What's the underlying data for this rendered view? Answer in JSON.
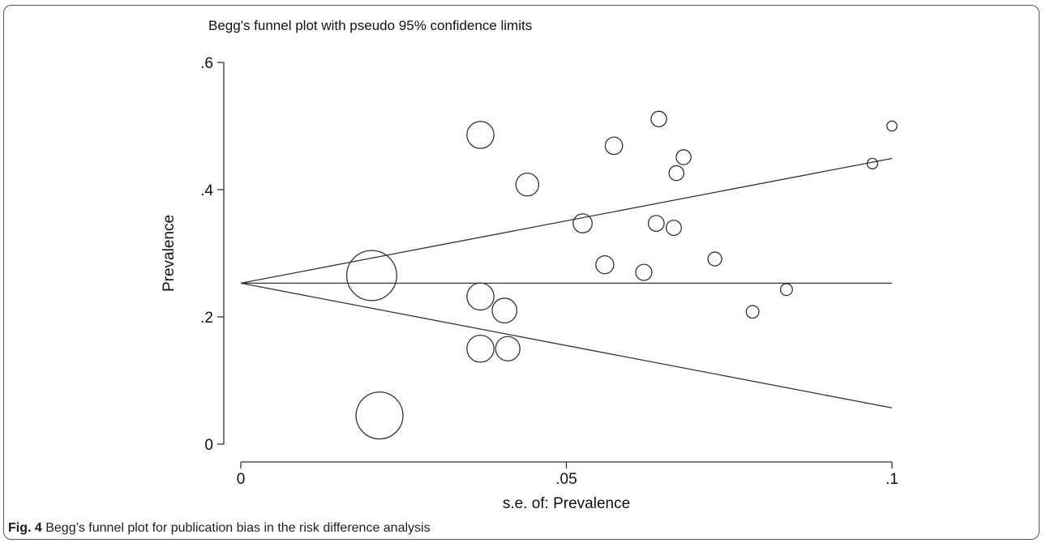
{
  "chart_data": {
    "type": "scatter",
    "title": "Begg's funnel plot with pseudo 95% confidence limits",
    "xlabel": "s.e. of: Prevalence",
    "ylabel": "Prevalence",
    "xlim": [
      0,
      0.1
    ],
    "ylim": [
      0,
      0.6
    ],
    "x_ticks": [
      {
        "value": 0,
        "label": "0"
      },
      {
        "value": 0.05,
        "label": ".05"
      },
      {
        "value": 0.1,
        "label": ".1"
      }
    ],
    "y_ticks": [
      {
        "value": 0,
        "label": "0"
      },
      {
        "value": 0.2,
        "label": ".2"
      },
      {
        "value": 0.4,
        "label": ".4"
      },
      {
        "value": 0.6,
        "label": ".6"
      }
    ],
    "pooled_estimate": 0.253,
    "confidence_limits": "pseudo 95%",
    "points": [
      {
        "x": 0.0201,
        "y": 0.265,
        "weight": 2.5
      },
      {
        "x": 0.0213,
        "y": 0.045,
        "weight": 2.2
      },
      {
        "x": 0.0368,
        "y": 0.486,
        "weight": 0.73
      },
      {
        "x": 0.0368,
        "y": 0.232,
        "weight": 0.73
      },
      {
        "x": 0.0368,
        "y": 0.15,
        "weight": 0.73
      },
      {
        "x": 0.0405,
        "y": 0.21,
        "weight": 0.61
      },
      {
        "x": 0.041,
        "y": 0.15,
        "weight": 0.59
      },
      {
        "x": 0.044,
        "y": 0.408,
        "weight": 0.52
      },
      {
        "x": 0.0525,
        "y": 0.347,
        "weight": 0.36
      },
      {
        "x": 0.0559,
        "y": 0.282,
        "weight": 0.32
      },
      {
        "x": 0.0573,
        "y": 0.469,
        "weight": 0.3
      },
      {
        "x": 0.0619,
        "y": 0.27,
        "weight": 0.26
      },
      {
        "x": 0.0638,
        "y": 0.347,
        "weight": 0.25
      },
      {
        "x": 0.0642,
        "y": 0.511,
        "weight": 0.24
      },
      {
        "x": 0.0665,
        "y": 0.34,
        "weight": 0.23
      },
      {
        "x": 0.0669,
        "y": 0.426,
        "weight": 0.22
      },
      {
        "x": 0.068,
        "y": 0.451,
        "weight": 0.22
      },
      {
        "x": 0.0728,
        "y": 0.291,
        "weight": 0.19
      },
      {
        "x": 0.0786,
        "y": 0.208,
        "weight": 0.16
      },
      {
        "x": 0.0838,
        "y": 0.243,
        "weight": 0.14
      },
      {
        "x": 0.097,
        "y": 0.441,
        "weight": 0.11
      },
      {
        "x": 0.1,
        "y": 0.5,
        "weight": 0.1
      }
    ]
  },
  "caption": {
    "label": "Fig. 4",
    "text": " Begg’s funnel plot for publication bias in the risk difference analysis"
  }
}
